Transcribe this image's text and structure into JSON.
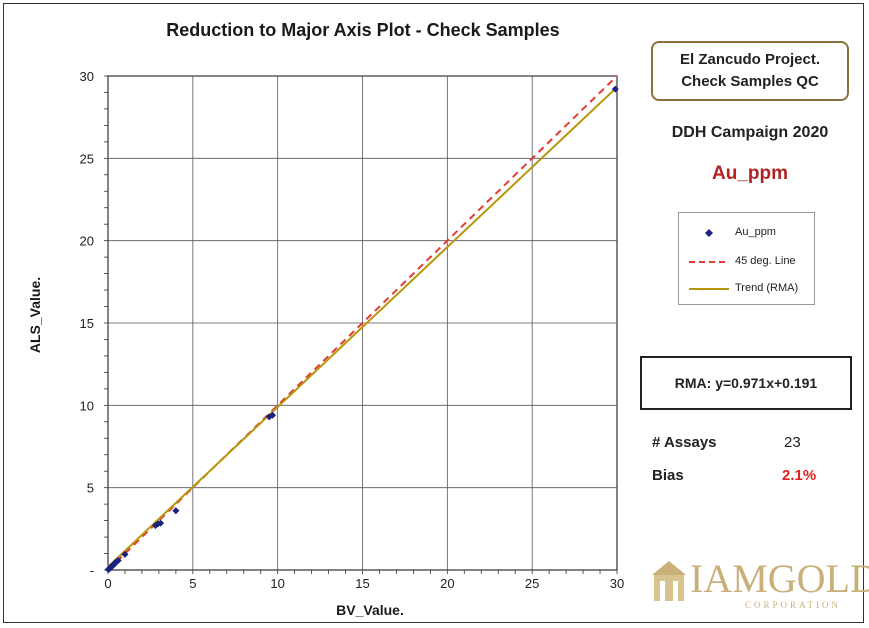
{
  "chart_data": {
    "type": "scatter",
    "title": "Reduction to Major Axis Plot - Check Samples",
    "xlabel": "BV_Value.",
    "ylabel": "ALS_Value.",
    "xlim": [
      0,
      30
    ],
    "ylim": [
      0,
      30
    ],
    "x_ticks": [
      "0",
      "5",
      "10",
      "15",
      "20",
      "25",
      "30"
    ],
    "y_ticks": [
      "-",
      "5",
      "10",
      "15",
      "20",
      "25",
      "30"
    ],
    "grid": true,
    "legend_position": "right",
    "series": [
      {
        "name": "Au_ppm",
        "kind": "scatter",
        "color": "#1a237e",
        "points": [
          [
            0.02,
            0.03
          ],
          [
            0.05,
            0.06
          ],
          [
            0.08,
            0.07
          ],
          [
            0.1,
            0.12
          ],
          [
            0.12,
            0.1
          ],
          [
            0.15,
            0.16
          ],
          [
            0.18,
            0.2
          ],
          [
            0.2,
            0.19
          ],
          [
            0.25,
            0.27
          ],
          [
            0.3,
            0.28
          ],
          [
            0.35,
            0.33
          ],
          [
            0.4,
            0.42
          ],
          [
            0.45,
            0.47
          ],
          [
            0.5,
            0.5
          ],
          [
            0.6,
            0.58
          ],
          [
            1.0,
            0.95
          ],
          [
            2.8,
            2.7
          ],
          [
            2.95,
            2.8
          ],
          [
            3.1,
            2.85
          ],
          [
            4.0,
            3.6
          ],
          [
            9.5,
            9.3
          ],
          [
            9.7,
            9.4
          ],
          [
            29.9,
            29.2
          ]
        ]
      },
      {
        "name": "45 deg. Line",
        "kind": "line",
        "color": "#e53935",
        "dash": true,
        "slope": 1,
        "intercept": 0
      },
      {
        "name": "Trend (RMA)",
        "kind": "line",
        "color": "#b8960c",
        "dash": false,
        "slope": 0.971,
        "intercept": 0.191
      }
    ]
  },
  "panel": {
    "project_line1": "El Zancudo Project.",
    "project_line2": "Check Samples QC",
    "campaign": "DDH Campaign  2020",
    "element": "Au_ppm",
    "rma_equation": "RMA: y=0.971x+0.191",
    "assays_label": "# Assays",
    "assays_value": "23",
    "bias_label": "Bias",
    "bias_value": "2.1%"
  },
  "logo": {
    "name": "IAMGOLD",
    "subtitle": "CORPORATION",
    "icon": "mine-building-icon"
  }
}
